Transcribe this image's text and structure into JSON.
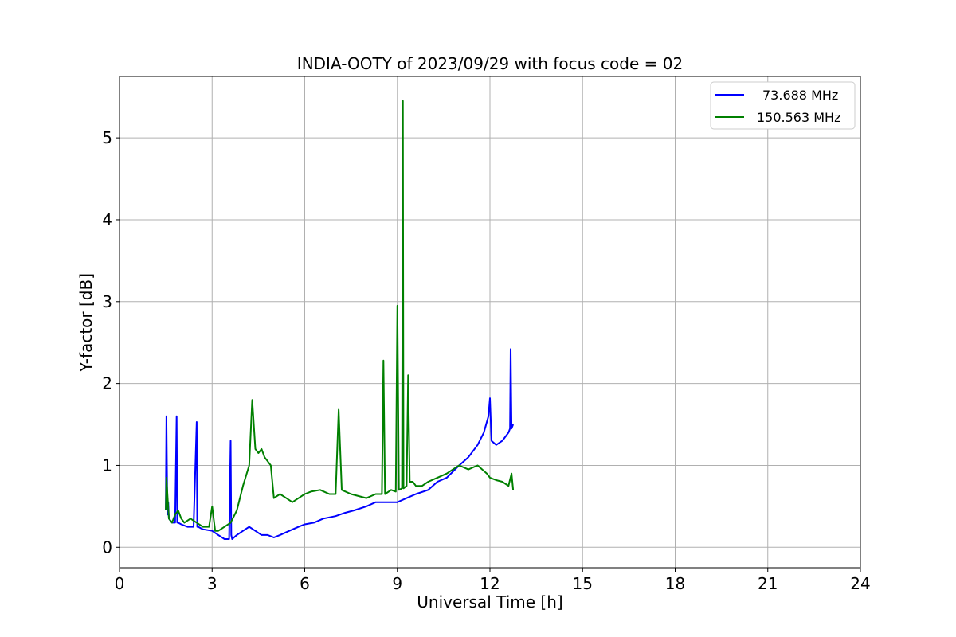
{
  "chart_data": {
    "type": "line",
    "title": "INDIA-OOTY of 2023/09/29 with focus code = 02",
    "xlabel": "Universal Time [h]",
    "ylabel": "Y-factor [dB]",
    "xlim": [
      0,
      24
    ],
    "ylim": [
      -0.25,
      5.75
    ],
    "xticks": [
      0,
      3,
      6,
      9,
      12,
      15,
      18,
      21,
      24
    ],
    "yticks": [
      0,
      1,
      2,
      3,
      4,
      5
    ],
    "grid": true,
    "legend_position": "top-right",
    "series": [
      {
        "name": "73.688 MHz",
        "color": "#0000ff",
        "x": [
          1.5,
          1.52,
          1.55,
          1.58,
          1.6,
          1.7,
          1.8,
          1.85,
          1.87,
          1.9,
          2.0,
          2.2,
          2.4,
          2.5,
          2.52,
          2.55,
          2.7,
          3.0,
          3.2,
          3.4,
          3.55,
          3.6,
          3.62,
          3.65,
          3.8,
          4.0,
          4.2,
          4.4,
          4.6,
          4.8,
          5.0,
          5.2,
          5.5,
          5.8,
          6.0,
          6.3,
          6.6,
          7.0,
          7.3,
          7.6,
          8.0,
          8.3,
          8.6,
          9.0,
          9.3,
          9.6,
          10.0,
          10.3,
          10.6,
          11.0,
          11.3,
          11.6,
          11.8,
          11.95,
          12.0,
          12.05,
          12.2,
          12.4,
          12.6,
          12.65,
          12.67,
          12.7,
          12.75
        ],
        "y": [
          0.45,
          1.6,
          0.4,
          0.55,
          0.35,
          0.3,
          0.3,
          1.6,
          0.3,
          0.3,
          0.28,
          0.25,
          0.25,
          1.53,
          0.25,
          0.25,
          0.22,
          0.2,
          0.15,
          0.1,
          0.1,
          1.3,
          0.15,
          0.1,
          0.15,
          0.2,
          0.25,
          0.2,
          0.15,
          0.15,
          0.12,
          0.15,
          0.2,
          0.25,
          0.28,
          0.3,
          0.35,
          0.38,
          0.42,
          0.45,
          0.5,
          0.55,
          0.55,
          0.55,
          0.6,
          0.65,
          0.7,
          0.8,
          0.85,
          1.0,
          1.1,
          1.25,
          1.4,
          1.6,
          1.82,
          1.3,
          1.25,
          1.3,
          1.4,
          1.45,
          2.42,
          1.45,
          1.5
        ]
      },
      {
        "name": "150.563 MHz",
        "color": "#008000",
        "x": [
          1.5,
          1.52,
          1.6,
          1.7,
          1.8,
          1.9,
          2.0,
          2.1,
          2.3,
          2.5,
          2.7,
          2.9,
          3.0,
          3.1,
          3.2,
          3.4,
          3.6,
          3.8,
          4.0,
          4.2,
          4.3,
          4.4,
          4.5,
          4.6,
          4.7,
          4.8,
          4.9,
          5.0,
          5.2,
          5.4,
          5.6,
          5.8,
          6.0,
          6.2,
          6.5,
          6.8,
          7.0,
          7.1,
          7.2,
          7.5,
          8.0,
          8.3,
          8.5,
          8.55,
          8.6,
          8.8,
          8.95,
          9.0,
          9.05,
          9.15,
          9.18,
          9.2,
          9.3,
          9.35,
          9.4,
          9.5,
          9.6,
          9.8,
          10.0,
          10.3,
          10.6,
          10.8,
          11.0,
          11.3,
          11.6,
          11.9,
          12.0,
          12.2,
          12.4,
          12.6,
          12.7,
          12.75
        ],
        "y": [
          0.45,
          0.85,
          0.35,
          0.3,
          0.4,
          0.45,
          0.35,
          0.3,
          0.35,
          0.3,
          0.25,
          0.25,
          0.5,
          0.2,
          0.2,
          0.25,
          0.3,
          0.45,
          0.75,
          1.0,
          1.8,
          1.2,
          1.15,
          1.2,
          1.1,
          1.05,
          1.0,
          0.6,
          0.65,
          0.6,
          0.55,
          0.6,
          0.65,
          0.68,
          0.7,
          0.65,
          0.65,
          1.68,
          0.7,
          0.65,
          0.6,
          0.65,
          0.65,
          2.28,
          0.65,
          0.7,
          0.68,
          2.95,
          0.7,
          0.72,
          5.45,
          0.72,
          0.75,
          2.1,
          0.8,
          0.8,
          0.75,
          0.75,
          0.8,
          0.85,
          0.9,
          0.95,
          1.0,
          0.95,
          1.0,
          0.9,
          0.85,
          0.82,
          0.8,
          0.75,
          0.9,
          0.7
        ]
      }
    ]
  }
}
